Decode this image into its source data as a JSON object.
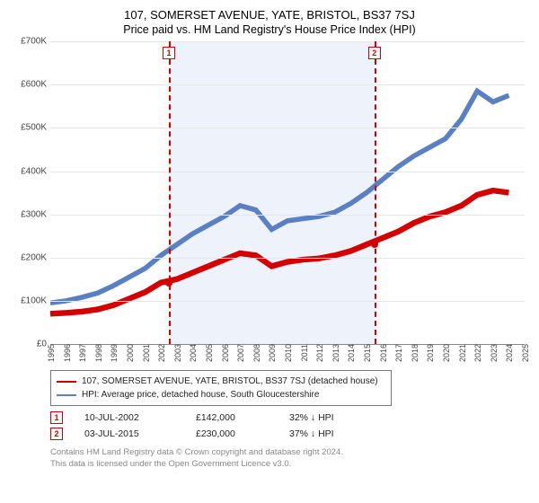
{
  "title": "107, SOMERSET AVENUE, YATE, BRISTOL, BS37 7SJ",
  "subtitle": "Price paid vs. HM Land Registry's House Price Index (HPI)",
  "chart": {
    "type": "line",
    "background_color": "#ffffff",
    "shade_color": "#eef3fb",
    "grid_color": "#e6e6e6",
    "marker_color": "#d40000",
    "axis_label_fontsize": 10,
    "x_years": [
      1995,
      1996,
      1997,
      1998,
      1999,
      2000,
      2001,
      2002,
      2003,
      2004,
      2005,
      2006,
      2007,
      2008,
      2009,
      2010,
      2011,
      2012,
      2013,
      2014,
      2015,
      2016,
      2017,
      2018,
      2019,
      2020,
      2021,
      2022,
      2023,
      2024,
      2025
    ],
    "xlim": [
      1995,
      2025
    ],
    "ylim": [
      0,
      700
    ],
    "ytick_step": 100,
    "yticks": [
      "£0",
      "£100K",
      "£200K",
      "£300K",
      "£400K",
      "£500K",
      "£600K",
      "£700K"
    ],
    "series": [
      {
        "label": "107, SOMERSET AVENUE, YATE, BRISTOL, BS37 7SJ (detached house)",
        "color": "#d40000",
        "line_width": 1.6,
        "values": [
          70,
          72,
          75,
          80,
          90,
          105,
          120,
          142,
          150,
          165,
          180,
          195,
          210,
          205,
          180,
          190,
          195,
          198,
          205,
          215,
          230,
          245,
          260,
          280,
          295,
          305,
          320,
          345,
          355,
          350
        ]
      },
      {
        "label": "HPI: Average price, detached house, South Gloucestershire",
        "color": "#5a7fc2",
        "line_width": 1.4,
        "values": [
          95,
          100,
          108,
          118,
          135,
          155,
          175,
          205,
          230,
          255,
          275,
          295,
          320,
          310,
          265,
          285,
          290,
          295,
          305,
          325,
          350,
          380,
          410,
          435,
          455,
          475,
          520,
          585,
          560,
          575
        ]
      }
    ],
    "sale_markers": [
      {
        "n": "1",
        "year": 2002.5,
        "value": 142
      },
      {
        "n": "2",
        "year": 2015.5,
        "value": 230
      }
    ],
    "shade_range": [
      2002.5,
      2015.5
    ]
  },
  "legend": {
    "rows": [
      {
        "color": "#d40000",
        "text": "107, SOMERSET AVENUE, YATE, BRISTOL, BS37 7SJ (detached house)"
      },
      {
        "color": "#5a7fc2",
        "text": "HPI: Average price, detached house, South Gloucestershire"
      }
    ]
  },
  "sales": [
    {
      "n": "1",
      "date": "10-JUL-2002",
      "price": "£142,000",
      "pct": "32% ↓ HPI"
    },
    {
      "n": "2",
      "date": "03-JUL-2015",
      "price": "£230,000",
      "pct": "37% ↓ HPI"
    }
  ],
  "footer": {
    "line1": "Contains HM Land Registry data © Crown copyright and database right 2024.",
    "line2": "This data is licensed under the Open Government Licence v3.0."
  }
}
